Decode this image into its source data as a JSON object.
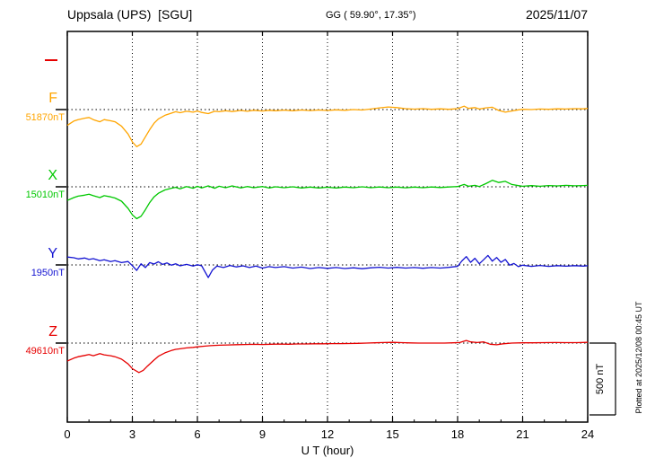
{
  "header": {
    "station": "Uppsala (UPS)  [SGU]",
    "coords": "GG ( 59.90°, 17.35°)",
    "date": "2025/11/07"
  },
  "axis": {
    "x_label": "U T (hour)"
  },
  "scale_bar": {
    "label": "500 nT",
    "value_nT": 500
  },
  "side_note": "Plotted at 2025/12/08 00:45 UT",
  "chart_data": {
    "type": "line",
    "title": "Uppsala (UPS) [SGU] magnetogram 2025/11/07",
    "xlabel": "U T (hour)",
    "x_range_hours": [
      0,
      24
    ],
    "x_tick_hours": [
      0,
      3,
      6,
      9,
      12,
      15,
      18,
      21,
      24
    ],
    "grid": "dotted-vertical-at-3h",
    "scale_nT_per_bar": 500,
    "series": [
      {
        "name": "F",
        "baseline_label": "51870nT",
        "baseline_nT": 51870,
        "color": "#ffa500",
        "points": [
          [
            0,
            -110
          ],
          [
            0.3,
            -80
          ],
          [
            0.5,
            -70
          ],
          [
            0.8,
            -60
          ],
          [
            1,
            -55
          ],
          [
            1.2,
            -70
          ],
          [
            1.5,
            -85
          ],
          [
            1.7,
            -70
          ],
          [
            2,
            -78
          ],
          [
            2.2,
            -85
          ],
          [
            2.5,
            -115
          ],
          [
            2.8,
            -170
          ],
          [
            3,
            -225
          ],
          [
            3.2,
            -258
          ],
          [
            3.4,
            -240
          ],
          [
            3.6,
            -190
          ],
          [
            3.8,
            -140
          ],
          [
            4,
            -95
          ],
          [
            4.2,
            -65
          ],
          [
            4.5,
            -40
          ],
          [
            4.8,
            -25
          ],
          [
            5,
            -15
          ],
          [
            5.2,
            -22
          ],
          [
            5.5,
            -12
          ],
          [
            5.8,
            -18
          ],
          [
            6,
            -10
          ],
          [
            6.2,
            -20
          ],
          [
            6.5,
            -28
          ],
          [
            6.8,
            -12
          ],
          [
            7,
            -15
          ],
          [
            7.3,
            -8
          ],
          [
            7.6,
            -14
          ],
          [
            8,
            -6
          ],
          [
            8.3,
            -12
          ],
          [
            8.6,
            -5
          ],
          [
            9,
            -10
          ],
          [
            9.3,
            -5
          ],
          [
            9.6,
            -8
          ],
          [
            10,
            -4
          ],
          [
            10.4,
            -8
          ],
          [
            10.8,
            -3
          ],
          [
            11.2,
            -7
          ],
          [
            11.6,
            -3
          ],
          [
            12,
            -6
          ],
          [
            12.4,
            -2
          ],
          [
            12.8,
            -5
          ],
          [
            13.2,
            0
          ],
          [
            13.6,
            -3
          ],
          [
            14,
            4
          ],
          [
            14.4,
            12
          ],
          [
            14.8,
            18
          ],
          [
            15.2,
            14
          ],
          [
            15.6,
            6
          ],
          [
            16,
            3
          ],
          [
            16.4,
            6
          ],
          [
            16.8,
            2
          ],
          [
            17.2,
            5
          ],
          [
            17.6,
            2
          ],
          [
            18,
            6
          ],
          [
            18.3,
            24
          ],
          [
            18.5,
            8
          ],
          [
            18.8,
            14
          ],
          [
            19,
            4
          ],
          [
            19.3,
            12
          ],
          [
            19.6,
            16
          ],
          [
            19.9,
            -6
          ],
          [
            20.2,
            -18
          ],
          [
            20.5,
            -10
          ],
          [
            20.8,
            -2
          ],
          [
            21,
            2
          ],
          [
            21.4,
            0
          ],
          [
            21.8,
            4
          ],
          [
            22.2,
            2
          ],
          [
            22.6,
            5
          ],
          [
            23,
            4
          ],
          [
            23.4,
            6
          ],
          [
            23.8,
            5
          ],
          [
            24,
            8
          ]
        ]
      },
      {
        "name": "X",
        "baseline_label": "15010nT",
        "baseline_nT": 15010,
        "color": "#00c800",
        "points": [
          [
            0,
            -95
          ],
          [
            0.3,
            -75
          ],
          [
            0.5,
            -65
          ],
          [
            0.8,
            -58
          ],
          [
            1,
            -52
          ],
          [
            1.2,
            -62
          ],
          [
            1.5,
            -75
          ],
          [
            1.7,
            -62
          ],
          [
            2,
            -70
          ],
          [
            2.2,
            -78
          ],
          [
            2.5,
            -100
          ],
          [
            2.8,
            -150
          ],
          [
            3,
            -195
          ],
          [
            3.2,
            -222
          ],
          [
            3.4,
            -205
          ],
          [
            3.6,
            -160
          ],
          [
            3.8,
            -110
          ],
          [
            4,
            -70
          ],
          [
            4.2,
            -45
          ],
          [
            4.5,
            -22
          ],
          [
            4.8,
            -10
          ],
          [
            5,
            -4
          ],
          [
            5.2,
            -14
          ],
          [
            5.5,
            2
          ],
          [
            5.8,
            -10
          ],
          [
            6,
            4
          ],
          [
            6.2,
            -8
          ],
          [
            6.5,
            6
          ],
          [
            6.8,
            -10
          ],
          [
            7,
            4
          ],
          [
            7.3,
            -6
          ],
          [
            7.6,
            6
          ],
          [
            8,
            -8
          ],
          [
            8.3,
            2
          ],
          [
            8.6,
            -6
          ],
          [
            9,
            2
          ],
          [
            9.3,
            -8
          ],
          [
            9.6,
            0
          ],
          [
            10,
            -6
          ],
          [
            10.4,
            0
          ],
          [
            10.8,
            -8
          ],
          [
            11.2,
            -2
          ],
          [
            11.6,
            -8
          ],
          [
            12,
            -3
          ],
          [
            12.4,
            -8
          ],
          [
            12.8,
            -2
          ],
          [
            13.2,
            -6
          ],
          [
            13.6,
            0
          ],
          [
            14,
            -6
          ],
          [
            14.4,
            -1
          ],
          [
            14.8,
            -6
          ],
          [
            15.2,
            -2
          ],
          [
            15.6,
            -7
          ],
          [
            16,
            -2
          ],
          [
            16.4,
            -6
          ],
          [
            16.8,
            -1
          ],
          [
            17.2,
            -5
          ],
          [
            17.6,
            -1
          ],
          [
            18,
            2
          ],
          [
            18.3,
            16
          ],
          [
            18.5,
            4
          ],
          [
            18.8,
            10
          ],
          [
            19,
            2
          ],
          [
            19.3,
            22
          ],
          [
            19.6,
            45
          ],
          [
            19.9,
            30
          ],
          [
            20.2,
            38
          ],
          [
            20.5,
            16
          ],
          [
            20.8,
            8
          ],
          [
            21,
            4
          ],
          [
            21.4,
            8
          ],
          [
            21.8,
            4
          ],
          [
            22.2,
            9
          ],
          [
            22.6,
            6
          ],
          [
            23,
            10
          ],
          [
            23.4,
            7
          ],
          [
            23.8,
            9
          ],
          [
            24,
            10
          ]
        ]
      },
      {
        "name": "Y",
        "baseline_label": "1950nT",
        "baseline_nT": 1950,
        "color": "#1414d2",
        "points": [
          [
            0,
            55
          ],
          [
            0.3,
            50
          ],
          [
            0.5,
            42
          ],
          [
            0.8,
            48
          ],
          [
            1,
            38
          ],
          [
            1.2,
            44
          ],
          [
            1.5,
            30
          ],
          [
            1.7,
            36
          ],
          [
            2,
            24
          ],
          [
            2.2,
            30
          ],
          [
            2.5,
            16
          ],
          [
            2.8,
            24
          ],
          [
            3,
            -5
          ],
          [
            3.2,
            -38
          ],
          [
            3.4,
            8
          ],
          [
            3.6,
            -18
          ],
          [
            3.8,
            16
          ],
          [
            4,
            6
          ],
          [
            4.2,
            22
          ],
          [
            4.4,
            4
          ],
          [
            4.6,
            14
          ],
          [
            4.8,
            -2
          ],
          [
            5,
            8
          ],
          [
            5.2,
            -6
          ],
          [
            5.5,
            4
          ],
          [
            5.8,
            -8
          ],
          [
            6,
            2
          ],
          [
            6.2,
            -6
          ],
          [
            6.5,
            -88
          ],
          [
            6.7,
            -35
          ],
          [
            6.9,
            -8
          ],
          [
            7.2,
            -18
          ],
          [
            7.5,
            -4
          ],
          [
            7.8,
            -14
          ],
          [
            8.1,
            -6
          ],
          [
            8.4,
            -18
          ],
          [
            8.7,
            -8
          ],
          [
            9,
            -22
          ],
          [
            9.3,
            -12
          ],
          [
            9.6,
            -18
          ],
          [
            10,
            -12
          ],
          [
            10.4,
            -22
          ],
          [
            10.8,
            -15
          ],
          [
            11.2,
            -25
          ],
          [
            11.6,
            -18
          ],
          [
            12,
            -24
          ],
          [
            12.4,
            -18
          ],
          [
            12.8,
            -25
          ],
          [
            13.2,
            -20
          ],
          [
            13.6,
            -26
          ],
          [
            14,
            -20
          ],
          [
            14.4,
            -16
          ],
          [
            14.8,
            -22
          ],
          [
            15.2,
            -17
          ],
          [
            15.6,
            -22
          ],
          [
            16,
            -18
          ],
          [
            16.4,
            -23
          ],
          [
            16.8,
            -18
          ],
          [
            17.2,
            -22
          ],
          [
            17.6,
            -17
          ],
          [
            18,
            -10
          ],
          [
            18.2,
            28
          ],
          [
            18.4,
            58
          ],
          [
            18.6,
            18
          ],
          [
            18.8,
            46
          ],
          [
            19,
            8
          ],
          [
            19.2,
            36
          ],
          [
            19.4,
            66
          ],
          [
            19.6,
            26
          ],
          [
            19.8,
            52
          ],
          [
            20,
            18
          ],
          [
            20.2,
            38
          ],
          [
            20.4,
            -2
          ],
          [
            20.6,
            10
          ],
          [
            20.8,
            -12
          ],
          [
            21,
            -2
          ],
          [
            21.4,
            -10
          ],
          [
            21.8,
            -4
          ],
          [
            22.2,
            -10
          ],
          [
            22.6,
            -5
          ],
          [
            23,
            -9
          ],
          [
            23.4,
            -5
          ],
          [
            23.8,
            -8
          ],
          [
            24,
            -5
          ]
        ]
      },
      {
        "name": "Z",
        "baseline_label": "49610nT",
        "baseline_nT": 49610,
        "color": "#e60000",
        "points": [
          [
            0,
            -125
          ],
          [
            0.3,
            -105
          ],
          [
            0.5,
            -95
          ],
          [
            0.8,
            -86
          ],
          [
            1,
            -80
          ],
          [
            1.2,
            -88
          ],
          [
            1.5,
            -74
          ],
          [
            1.7,
            -82
          ],
          [
            2,
            -88
          ],
          [
            2.2,
            -95
          ],
          [
            2.5,
            -112
          ],
          [
            2.8,
            -145
          ],
          [
            3,
            -178
          ],
          [
            3.3,
            -205
          ],
          [
            3.5,
            -190
          ],
          [
            3.7,
            -160
          ],
          [
            4,
            -118
          ],
          [
            4.2,
            -92
          ],
          [
            4.5,
            -68
          ],
          [
            4.8,
            -52
          ],
          [
            5,
            -44
          ],
          [
            5.2,
            -40
          ],
          [
            5.5,
            -34
          ],
          [
            5.8,
            -30
          ],
          [
            6,
            -26
          ],
          [
            6.3,
            -22
          ],
          [
            6.6,
            -18
          ],
          [
            7,
            -15
          ],
          [
            7.4,
            -13
          ],
          [
            7.8,
            -11
          ],
          [
            8.2,
            -10
          ],
          [
            8.6,
            -9
          ],
          [
            9,
            -10
          ],
          [
            9.4,
            -8
          ],
          [
            9.8,
            -7
          ],
          [
            10.2,
            -8
          ],
          [
            10.6,
            -6
          ],
          [
            11,
            -6
          ],
          [
            11.4,
            -5
          ],
          [
            11.8,
            -5
          ],
          [
            12.2,
            -4
          ],
          [
            12.6,
            -4
          ],
          [
            13,
            -3
          ],
          [
            13.4,
            -2
          ],
          [
            13.8,
            0
          ],
          [
            14.2,
            2
          ],
          [
            14.6,
            4
          ],
          [
            15,
            5
          ],
          [
            15.4,
            3
          ],
          [
            15.8,
            1
          ],
          [
            16.2,
            0
          ],
          [
            16.6,
            0
          ],
          [
            17,
            0
          ],
          [
            17.4,
            0
          ],
          [
            17.8,
            2
          ],
          [
            18.1,
            4
          ],
          [
            18.4,
            18
          ],
          [
            18.6,
            8
          ],
          [
            18.9,
            4
          ],
          [
            19.2,
            8
          ],
          [
            19.5,
            -8
          ],
          [
            19.8,
            -12
          ],
          [
            20.1,
            -5
          ],
          [
            20.5,
            0
          ],
          [
            21,
            2
          ],
          [
            21.5,
            2
          ],
          [
            22,
            3
          ],
          [
            22.5,
            4
          ],
          [
            23,
            3
          ],
          [
            23.5,
            3
          ],
          [
            24,
            5
          ]
        ]
      }
    ]
  }
}
